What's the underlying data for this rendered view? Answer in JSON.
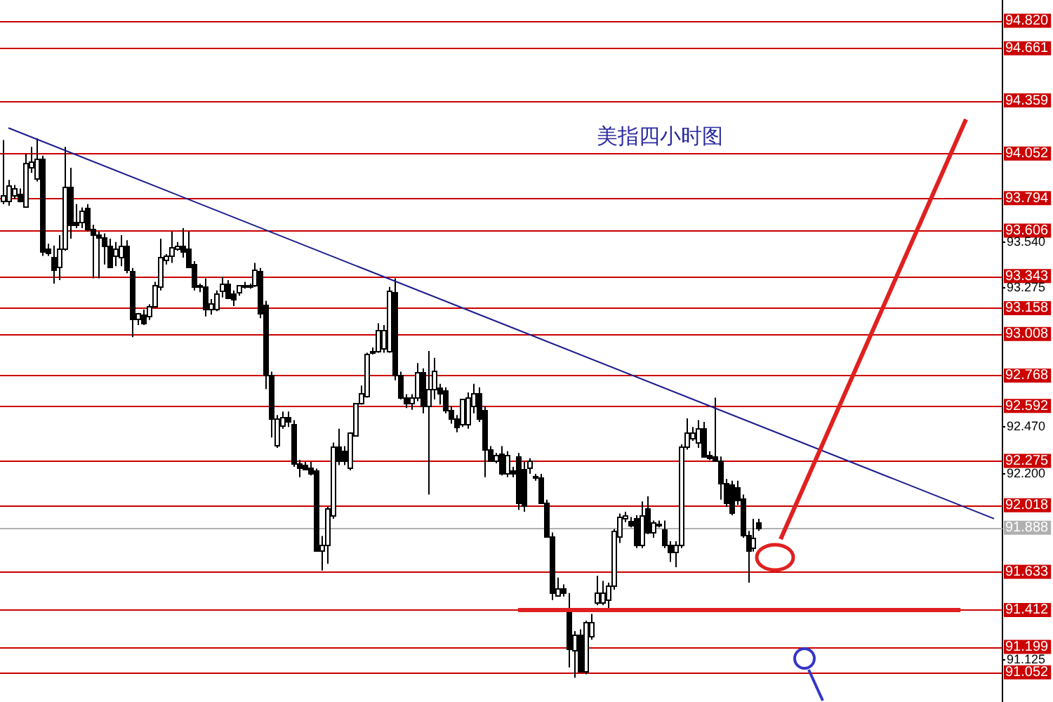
{
  "chart_data": {
    "type": "candlestick",
    "title": "美指四小时图",
    "categories": [
      null,
      null,
      null,
      null,
      null,
      null,
      null,
      null,
      null,
      null,
      null,
      null,
      null,
      null,
      null,
      null,
      null,
      null,
      null,
      null,
      null,
      null,
      null,
      null,
      null,
      null,
      null,
      null,
      null,
      null,
      null,
      null,
      null,
      null,
      null,
      null,
      null,
      null,
      null,
      null,
      null,
      null,
      null,
      null,
      null,
      null,
      null,
      null,
      null,
      null,
      null,
      null,
      null,
      null,
      null,
      null,
      null,
      null,
      null,
      null,
      null,
      null,
      null,
      null,
      null,
      null,
      null,
      null,
      null,
      null,
      null,
      null,
      null,
      null,
      null,
      null,
      null,
      null,
      null,
      null,
      null,
      null,
      null,
      null,
      null,
      null,
      null,
      null,
      null,
      null,
      null,
      null,
      null,
      null,
      null,
      null,
      null,
      null,
      null,
      null,
      null,
      null,
      null,
      null,
      null,
      null,
      null,
      null,
      null,
      null,
      null,
      null,
      null,
      null,
      null,
      null,
      null,
      null,
      null,
      null,
      null,
      null,
      null,
      null,
      null,
      null,
      null,
      null,
      null,
      null,
      null,
      null,
      null,
      null,
      null,
      null,
      null,
      null,
      null,
      null,
      null,
      null,
      null,
      null,
      null,
      null,
      null,
      null,
      null,
      null,
      null,
      null,
      null,
      null,
      null,
      null,
      null,
      null,
      null,
      null,
      null,
      null,
      null,
      null,
      null,
      null,
      null,
      null,
      null,
      null,
      null,
      null,
      null,
      null,
      null,
      null,
      null,
      null,
      null
    ],
    "ohlc": [
      [
        93.78,
        94.13,
        93.76,
        93.81
      ],
      [
        93.78,
        93.9,
        93.75,
        93.87
      ],
      [
        93.81,
        93.87,
        93.79,
        93.85
      ],
      [
        93.82,
        93.85,
        93.77,
        93.78
      ],
      [
        93.75,
        94.05,
        93.74,
        94.0
      ],
      [
        93.97,
        94.09,
        93.94,
        94.01
      ],
      [
        93.91,
        94.14,
        93.89,
        94.02
      ],
      [
        94.02,
        94.04,
        93.46,
        93.49
      ],
      [
        93.5,
        93.53,
        93.46,
        93.48
      ],
      [
        93.45,
        93.52,
        93.3,
        93.38
      ],
      [
        93.4,
        93.58,
        93.32,
        93.5
      ],
      [
        93.5,
        94.09,
        93.49,
        93.86
      ],
      [
        93.86,
        93.97,
        93.56,
        93.64
      ],
      [
        93.66,
        93.76,
        93.62,
        93.64
      ],
      [
        93.66,
        93.74,
        93.62,
        93.72
      ],
      [
        93.74,
        93.76,
        93.6,
        93.62
      ],
      [
        93.62,
        93.64,
        93.33,
        93.58
      ],
      [
        93.58,
        93.6,
        93.33,
        93.57
      ],
      [
        93.57,
        93.59,
        93.41,
        93.52
      ],
      [
        93.52,
        93.56,
        93.4,
        93.4
      ],
      [
        93.46,
        93.54,
        93.4,
        93.5
      ],
      [
        93.45,
        93.58,
        93.4,
        93.52
      ],
      [
        93.52,
        93.55,
        93.36,
        93.38
      ],
      [
        93.37,
        93.39,
        92.99,
        93.1
      ],
      [
        93.1,
        93.13,
        93.06,
        93.13
      ],
      [
        93.12,
        93.15,
        93.06,
        93.07
      ],
      [
        93.11,
        93.18,
        93.09,
        93.17
      ],
      [
        93.17,
        93.31,
        93.16,
        93.29
      ],
      [
        93.28,
        93.56,
        93.26,
        93.45
      ],
      [
        93.44,
        93.47,
        93.41,
        93.46
      ],
      [
        93.46,
        93.6,
        93.42,
        93.51
      ],
      [
        93.5,
        93.54,
        93.49,
        93.52
      ],
      [
        93.52,
        93.62,
        93.45,
        93.49
      ],
      [
        93.5,
        93.6,
        93.39,
        93.4
      ],
      [
        93.41,
        93.43,
        93.26,
        93.28
      ],
      [
        93.29,
        93.3,
        93.25,
        93.28
      ],
      [
        93.28,
        93.33,
        93.11,
        93.15
      ],
      [
        93.15,
        93.21,
        93.12,
        93.19
      ],
      [
        93.15,
        93.26,
        93.14,
        93.24
      ],
      [
        93.26,
        93.34,
        93.22,
        93.3
      ],
      [
        93.3,
        93.32,
        93.21,
        93.22
      ],
      [
        93.24,
        93.26,
        93.17,
        93.21
      ],
      [
        93.25,
        93.29,
        93.23,
        93.29
      ],
      [
        93.29,
        93.31,
        93.27,
        93.28
      ],
      [
        93.28,
        93.3,
        93.27,
        93.29
      ],
      [
        93.29,
        93.42,
        93.28,
        93.38
      ],
      [
        93.37,
        93.39,
        93.1,
        93.13
      ],
      [
        93.18,
        93.2,
        92.69,
        92.77
      ],
      [
        92.77,
        92.79,
        92.41,
        92.52
      ],
      [
        92.37,
        92.54,
        92.35,
        92.52
      ],
      [
        92.48,
        92.56,
        92.46,
        92.53
      ],
      [
        92.53,
        92.56,
        92.47,
        92.5
      ],
      [
        92.49,
        92.51,
        92.24,
        92.26
      ],
      [
        92.26,
        92.28,
        92.18,
        92.24
      ],
      [
        92.25,
        92.27,
        92.22,
        92.23
      ],
      [
        92.24,
        92.27,
        92.19,
        92.2
      ],
      [
        92.22,
        92.23,
        91.75,
        91.76
      ],
      [
        91.76,
        91.84,
        91.64,
        91.79
      ],
      [
        91.79,
        92.01,
        91.68,
        92.0
      ],
      [
        91.96,
        92.38,
        91.94,
        92.36
      ],
      [
        92.36,
        92.46,
        92.25,
        92.28
      ],
      [
        92.33,
        92.36,
        92.25,
        92.28
      ],
      [
        92.24,
        92.44,
        92.22,
        92.44
      ],
      [
        92.42,
        92.61,
        92.42,
        92.61
      ],
      [
        92.61,
        92.71,
        92.6,
        92.67
      ],
      [
        92.65,
        92.9,
        92.64,
        92.89
      ],
      [
        92.9,
        92.93,
        92.89,
        92.91
      ],
      [
        92.91,
        93.07,
        92.9,
        93.03
      ],
      [
        92.93,
        93.06,
        92.9,
        93.03
      ],
      [
        92.91,
        93.28,
        92.9,
        93.26
      ],
      [
        93.25,
        93.33,
        92.74,
        92.77
      ],
      [
        92.77,
        92.79,
        92.63,
        92.64
      ],
      [
        92.64,
        92.66,
        92.58,
        92.61
      ],
      [
        92.61,
        92.66,
        92.57,
        92.64
      ],
      [
        92.64,
        92.84,
        92.62,
        92.79
      ],
      [
        92.79,
        92.81,
        92.55,
        92.59
      ],
      [
        92.59,
        92.91,
        92.08,
        92.69
      ],
      [
        92.69,
        92.87,
        92.63,
        92.8
      ],
      [
        92.7,
        92.72,
        92.6,
        92.67
      ],
      [
        92.68,
        92.7,
        92.55,
        92.57
      ],
      [
        92.57,
        92.59,
        92.49,
        92.52
      ],
      [
        92.52,
        92.54,
        92.44,
        92.47
      ],
      [
        92.49,
        92.63,
        92.47,
        92.63
      ],
      [
        92.49,
        92.67,
        92.46,
        92.64
      ],
      [
        92.59,
        92.72,
        92.55,
        92.67
      ],
      [
        92.67,
        92.7,
        92.5,
        92.52
      ],
      [
        92.57,
        92.59,
        92.18,
        92.34
      ],
      [
        92.34,
        92.36,
        92.27,
        92.28
      ],
      [
        92.28,
        92.32,
        92.26,
        92.31
      ],
      [
        92.32,
        92.36,
        92.19,
        92.2
      ],
      [
        92.2,
        92.33,
        92.18,
        92.31
      ],
      [
        92.22,
        92.24,
        92.18,
        92.2
      ],
      [
        92.3,
        92.32,
        91.99,
        92.03
      ],
      [
        92.23,
        92.27,
        91.98,
        92.02
      ],
      [
        92.24,
        92.29,
        92.2,
        92.28
      ],
      [
        92.19,
        92.2,
        92.16,
        92.18
      ],
      [
        92.18,
        92.2,
        92.03,
        92.03
      ],
      [
        92.03,
        92.05,
        91.83,
        91.84
      ],
      [
        91.84,
        91.86,
        91.47,
        91.51
      ],
      [
        91.5,
        91.6,
        91.49,
        91.54
      ],
      [
        91.54,
        91.56,
        91.49,
        91.51
      ],
      [
        91.42,
        91.51,
        91.08,
        91.19
      ],
      [
        91.18,
        91.29,
        91.02,
        91.27
      ],
      [
        91.27,
        91.3,
        91.06,
        91.06
      ],
      [
        91.06,
        91.35,
        91.04,
        91.34
      ],
      [
        91.26,
        91.39,
        91.24,
        91.34
      ],
      [
        91.46,
        91.61,
        91.44,
        91.51
      ],
      [
        91.46,
        91.58,
        91.44,
        91.51
      ],
      [
        91.47,
        91.57,
        91.42,
        91.55
      ],
      [
        91.55,
        91.88,
        91.53,
        91.87
      ],
      [
        91.84,
        91.97,
        91.8,
        91.95
      ],
      [
        91.94,
        91.98,
        91.92,
        91.96
      ],
      [
        91.93,
        91.95,
        91.89,
        91.9
      ],
      [
        91.94,
        91.96,
        91.77,
        91.79
      ],
      [
        91.79,
        92.04,
        91.77,
        91.96
      ],
      [
        92.0,
        92.07,
        91.85,
        91.86
      ],
      [
        91.86,
        91.93,
        91.83,
        91.92
      ],
      [
        91.91,
        91.93,
        91.89,
        91.91
      ],
      [
        91.88,
        91.93,
        91.77,
        91.79
      ],
      [
        91.79,
        91.81,
        91.69,
        91.75
      ],
      [
        91.75,
        91.81,
        91.66,
        91.79
      ],
      [
        91.79,
        92.37,
        91.77,
        92.36
      ],
      [
        92.36,
        92.52,
        92.34,
        92.44
      ],
      [
        92.41,
        92.47,
        92.39,
        92.44
      ],
      [
        92.38,
        92.51,
        92.35,
        92.46
      ],
      [
        92.46,
        92.5,
        92.3,
        92.3
      ],
      [
        92.31,
        92.33,
        92.28,
        92.29
      ],
      [
        92.3,
        92.64,
        92.27,
        92.28
      ],
      [
        92.28,
        92.3,
        92.05,
        92.15
      ],
      [
        92.15,
        92.17,
        92.01,
        92.03
      ],
      [
        92.14,
        92.16,
        91.96,
        91.98
      ],
      [
        92.12,
        92.16,
        92.02,
        92.05
      ],
      [
        92.06,
        92.08,
        91.83,
        91.85
      ],
      [
        91.85,
        91.87,
        91.57,
        91.76
      ],
      [
        91.77,
        91.94,
        91.75,
        91.83
      ],
      [
        91.92,
        91.94,
        91.87,
        91.89
      ],
      null,
      null,
      null,
      null,
      null,
      null,
      null,
      null,
      null,
      null,
      null,
      null,
      null,
      null,
      null,
      null,
      null,
      null,
      null,
      null,
      null,
      null,
      null,
      null,
      null,
      null,
      null,
      null,
      null,
      null,
      null,
      null,
      null,
      null,
      null,
      null,
      null,
      null,
      null,
      null,
      null,
      null,
      null
    ],
    "series": [
      {
        "type": "line",
        "color": "#1a1a8c",
        "values": [
          null,
          94.2,
          null,
          null,
          null,
          null,
          null,
          null,
          null,
          null,
          null,
          null,
          null,
          null,
          null,
          null,
          null,
          null,
          null,
          null,
          null,
          null,
          null,
          null,
          null,
          null,
          null,
          null,
          null,
          null,
          null,
          null,
          null,
          null,
          null,
          null,
          null,
          null,
          null,
          null,
          null,
          null,
          null,
          null,
          null,
          null,
          null,
          null,
          null,
          null,
          null,
          null,
          null,
          null,
          null,
          null,
          null,
          null,
          null,
          null,
          null,
          null,
          null,
          null,
          null,
          null,
          null,
          null,
          null,
          null,
          null,
          null,
          null,
          null,
          null,
          null,
          null,
          null,
          null,
          null,
          null,
          null,
          null,
          null,
          null,
          null,
          null,
          null,
          null,
          null,
          null,
          null,
          null,
          null,
          null,
          null,
          null,
          null,
          null,
          null,
          null,
          null,
          null,
          null,
          null,
          null,
          null,
          null,
          null,
          null,
          null,
          null,
          null,
          null,
          null,
          null,
          null,
          null,
          null,
          null,
          null,
          null,
          null,
          null,
          null,
          null,
          null,
          null,
          null,
          null,
          null,
          null,
          null,
          null,
          null,
          null,
          null,
          null,
          null,
          null,
          null,
          null,
          null,
          null,
          null,
          null,
          null,
          null,
          null,
          null,
          null,
          null,
          null,
          null,
          null,
          null,
          null,
          null,
          null,
          null,
          null,
          null,
          null,
          null,
          null,
          null,
          null,
          null,
          null,
          null,
          null,
          null,
          null,
          null,
          null,
          null,
          null,
          91.94,
          null
        ]
      },
      {
        "type": "line",
        "color": "#e02020",
        "values": [
          null,
          null,
          null,
          null,
          null,
          null,
          null,
          null,
          null,
          null,
          null,
          null,
          null,
          null,
          null,
          null,
          null,
          null,
          null,
          null,
          null,
          null,
          null,
          null,
          null,
          null,
          null,
          null,
          null,
          null,
          null,
          null,
          null,
          null,
          null,
          null,
          null,
          null,
          null,
          null,
          null,
          null,
          null,
          null,
          null,
          null,
          null,
          null,
          null,
          null,
          null,
          null,
          null,
          null,
          null,
          null,
          null,
          null,
          null,
          null,
          null,
          null,
          null,
          null,
          null,
          null,
          null,
          null,
          null,
          null,
          null,
          null,
          null,
          null,
          null,
          null,
          null,
          null,
          null,
          null,
          null,
          null,
          null,
          null,
          null,
          null,
          null,
          null,
          null,
          null,
          null,
          null,
          91.412,
          null,
          null,
          null,
          null,
          null,
          null,
          null,
          null,
          null,
          null,
          null,
          null,
          null,
          null,
          null,
          null,
          null,
          null,
          null,
          null,
          null,
          null,
          null,
          null,
          null,
          null,
          null,
          null,
          null,
          null,
          null,
          null,
          null,
          null,
          null,
          null,
          null,
          null,
          null,
          null,
          null,
          null,
          null,
          null,
          null,
          null,
          null,
          null,
          null,
          null,
          null,
          null,
          null,
          null,
          null,
          null,
          null,
          null,
          null,
          null,
          null,
          null,
          null,
          null,
          null,
          null,
          null,
          null,
          null,
          null,
          null,
          null,
          null,
          null,
          null,
          null,
          null,
          null,
          91.412,
          null,
          null,
          null,
          null,
          null,
          null,
          null
        ]
      }
    ],
    "ylim": [
      90.88,
      94.94
    ],
    "yticks": [
      {
        "value": 93.54,
        "label": "93.540"
      },
      {
        "value": 93.275,
        "label": "93.275"
      },
      {
        "value": 92.47,
        "label": "92.470"
      },
      {
        "value": 92.2,
        "label": "92.200"
      },
      {
        "value": 91.125,
        "label": "91.125"
      }
    ],
    "ref_lines": [
      {
        "axis": "y",
        "value": 94.82,
        "label": "94.820",
        "color": "#cc0000"
      },
      {
        "axis": "y",
        "value": 94.661,
        "label": "94.661",
        "color": "#cc0000"
      },
      {
        "axis": "y",
        "value": 94.359,
        "label": "94.359",
        "color": "#cc0000"
      },
      {
        "axis": "y",
        "value": 94.052,
        "label": "94.052",
        "color": "#cc0000"
      },
      {
        "axis": "y",
        "value": 93.794,
        "label": "93.794",
        "color": "#cc0000"
      },
      {
        "axis": "y",
        "value": 93.606,
        "label": "93.606",
        "color": "#cc0000"
      },
      {
        "axis": "y",
        "value": 93.343,
        "label": "93.343",
        "color": "#cc0000"
      },
      {
        "axis": "y",
        "value": 93.158,
        "label": "93.158",
        "color": "#cc0000"
      },
      {
        "axis": "y",
        "value": 93.008,
        "label": "93.008",
        "color": "#cc0000"
      },
      {
        "axis": "y",
        "value": 92.768,
        "label": "92.768",
        "color": "#cc0000"
      },
      {
        "axis": "y",
        "value": 92.592,
        "label": "92.592",
        "color": "#cc0000"
      },
      {
        "axis": "y",
        "value": 92.275,
        "label": "92.275",
        "color": "#cc0000"
      },
      {
        "axis": "y",
        "value": 92.018,
        "label": "92.018",
        "color": "#cc0000"
      },
      {
        "axis": "y",
        "value": 91.888,
        "label": "91.888",
        "color": "#b0b0b0"
      },
      {
        "axis": "y",
        "value": 91.633,
        "label": "91.633",
        "color": "#cc0000"
      },
      {
        "axis": "y",
        "value": 91.412,
        "label": "91.412",
        "color": "#cc0000"
      },
      {
        "axis": "y",
        "value": 91.199,
        "label": "91.199",
        "color": "#cc0000"
      },
      {
        "axis": "y",
        "value": 91.052,
        "label": "91.052",
        "color": "#cc0000"
      }
    ],
    "tick_labels": "y",
    "grid": false,
    "legend": false
  }
}
